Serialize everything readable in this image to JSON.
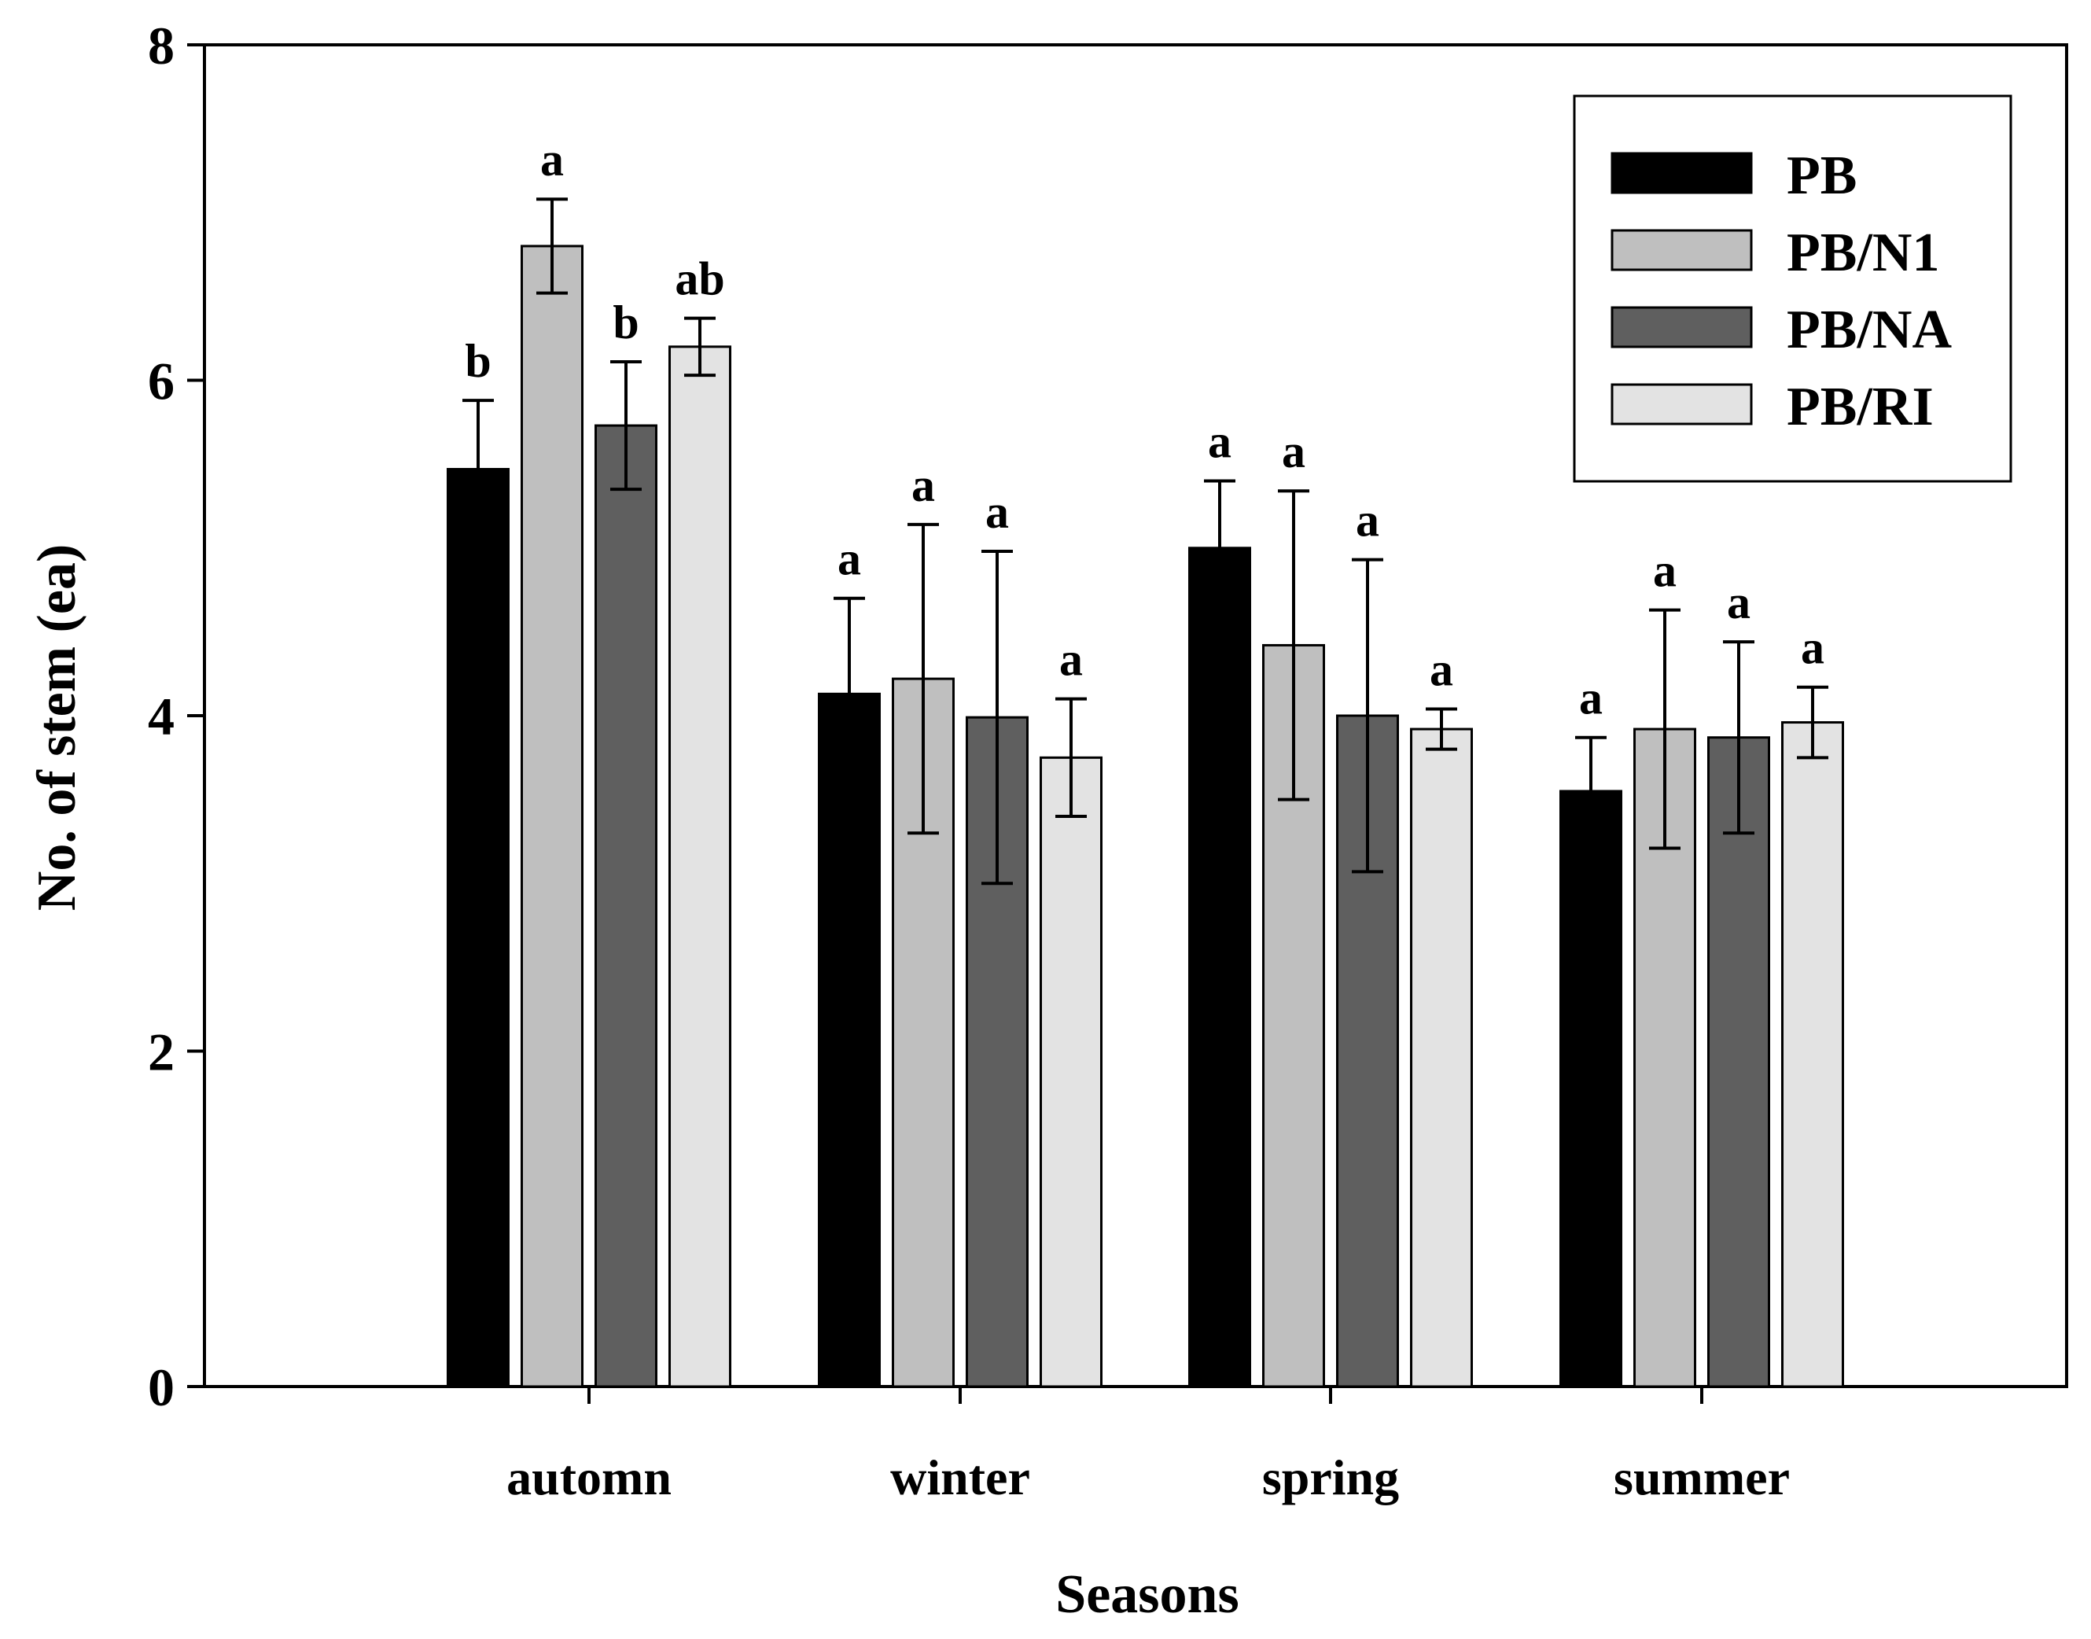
{
  "chart_data": {
    "type": "bar",
    "title": "",
    "xlabel": "Seasons",
    "ylabel": "No. of stem (ea)",
    "ylim": [
      0,
      8
    ],
    "yticks": [
      "0",
      "2",
      "4",
      "6",
      "8"
    ],
    "grid": false,
    "legend_position": "top-right",
    "categories": [
      "automn",
      "winter",
      "spring",
      "summer"
    ],
    "series": [
      {
        "name": "PB",
        "color": "#000000",
        "values": [
          5.47,
          4.13,
          5.0,
          3.55
        ],
        "errors": [
          0.41,
          0.57,
          0.4,
          0.32
        ],
        "labels": [
          "b",
          "a",
          "a",
          "a"
        ]
      },
      {
        "name": "PB/N1",
        "color": "#bfbfbf",
        "values": [
          6.8,
          4.22,
          4.42,
          3.92
        ],
        "errors": [
          0.28,
          0.92,
          0.92,
          0.71
        ],
        "labels": [
          "a",
          "a",
          "a",
          "a"
        ]
      },
      {
        "name": "PB/NA",
        "color": "#5f5f5f",
        "values": [
          5.73,
          3.99,
          4.0,
          3.87
        ],
        "errors": [
          0.38,
          0.99,
          0.93,
          0.57
        ],
        "labels": [
          "b",
          "a",
          "a",
          "a"
        ]
      },
      {
        "name": "PB/RI",
        "color": "#e3e3e3",
        "values": [
          6.2,
          3.75,
          3.92,
          3.96
        ],
        "errors": [
          0.17,
          0.35,
          0.12,
          0.21
        ],
        "labels": [
          "ab",
          "a",
          "a",
          "a"
        ]
      }
    ]
  }
}
